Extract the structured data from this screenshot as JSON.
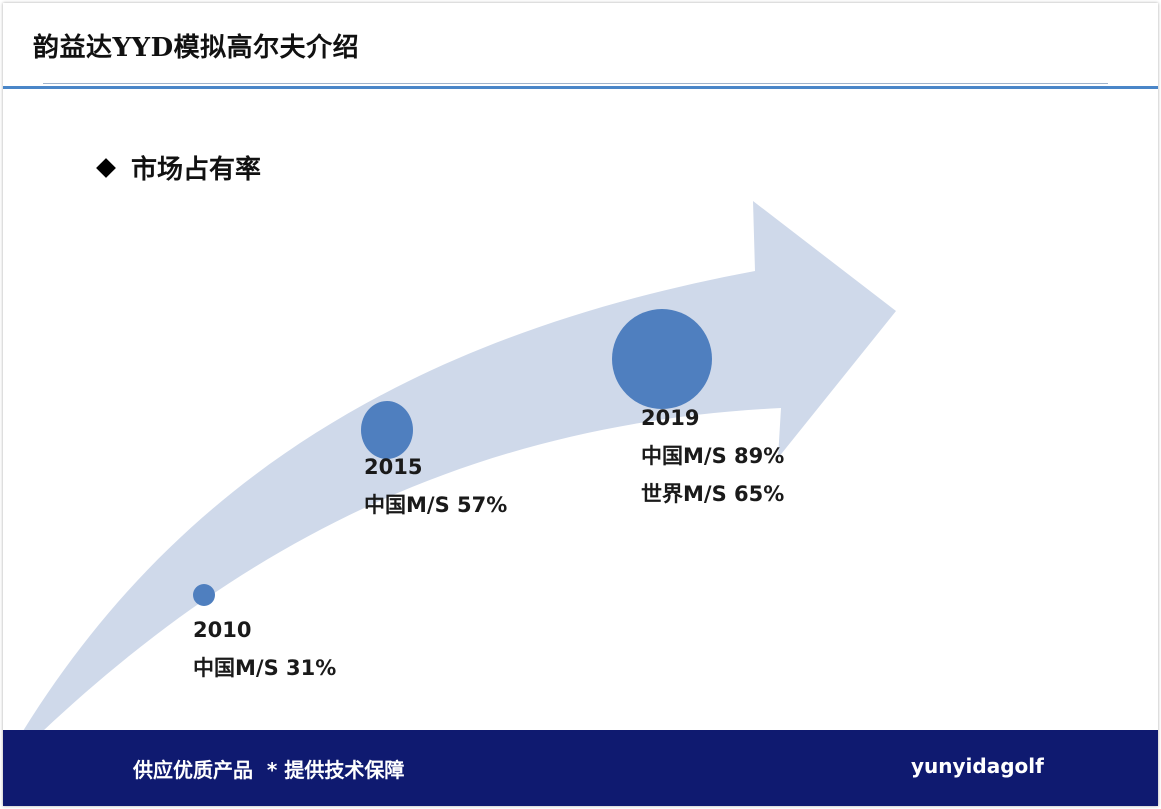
{
  "header": {
    "title": "韵益达YYD模拟高尔夫介绍"
  },
  "section": {
    "bullet_text": "市场占有率"
  },
  "timeline": [
    {
      "year": "2010",
      "lines": [
        "中国M/S 31%"
      ]
    },
    {
      "year": "2015",
      "lines": [
        "中国M/S 57%"
      ]
    },
    {
      "year": "2019",
      "lines": [
        "中国M/S 89%",
        "世界M/S 65%"
      ]
    }
  ],
  "footer": {
    "slogan": "供应优质产品  * 提供技术保障",
    "brand": "yunyidagolf"
  },
  "colors": {
    "accent_line": "#4a86c8",
    "arrow_fill": "#cfd9ea",
    "circle_fill": "#4f7fbf",
    "footer_bg": "#0f1a70"
  }
}
